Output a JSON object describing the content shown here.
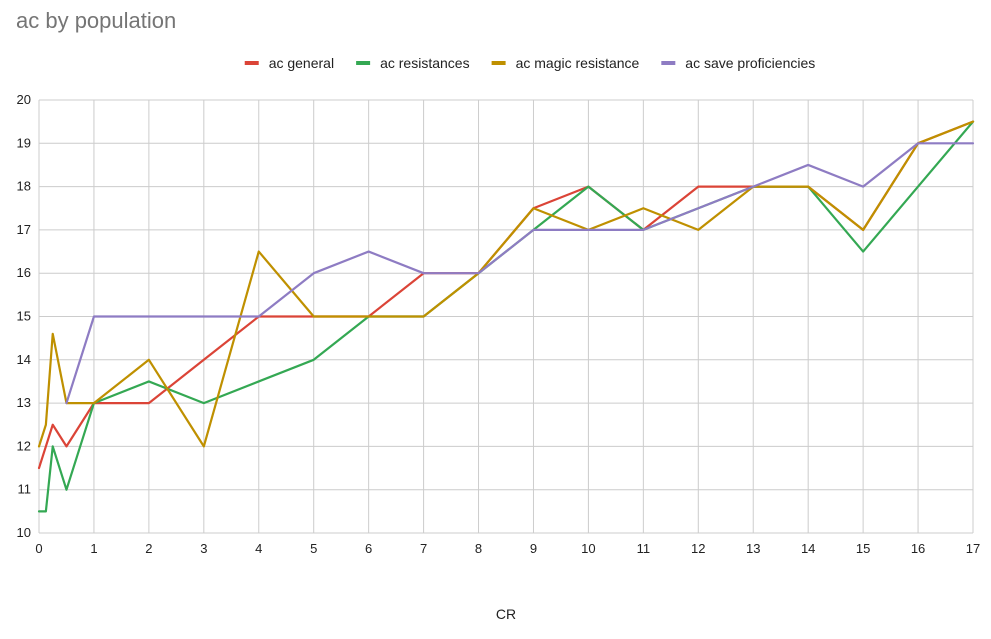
{
  "chart_data": {
    "type": "line",
    "title": "ac by population",
    "xlabel": "CR",
    "ylabel": "",
    "xlim": [
      0,
      17
    ],
    "ylim": [
      10,
      20
    ],
    "xticks": [
      0,
      1,
      2,
      3,
      4,
      5,
      6,
      7,
      8,
      9,
      10,
      11,
      12,
      13,
      14,
      15,
      16,
      17
    ],
    "yticks": [
      10,
      11,
      12,
      13,
      14,
      15,
      16,
      17,
      18,
      19,
      20
    ],
    "grid": true,
    "legend_position": "top-center",
    "x": [
      0,
      0.125,
      0.25,
      0.5,
      1,
      2,
      3,
      4,
      5,
      6,
      7,
      8,
      9,
      10,
      11,
      12,
      13,
      14,
      15,
      16,
      17
    ],
    "series": [
      {
        "name": "ac general",
        "color": "#db4437",
        "values": [
          11.5,
          12,
          12.5,
          12,
          13,
          13,
          14,
          15,
          15,
          15,
          16,
          16,
          17.5,
          18,
          17,
          18,
          18,
          18,
          17,
          19,
          19.5
        ]
      },
      {
        "name": "ac resistances",
        "color": "#34a853",
        "values": [
          10.5,
          10.5,
          12,
          11,
          13,
          13.5,
          13,
          13.5,
          14,
          15,
          15,
          16,
          17,
          18,
          17,
          17.5,
          18,
          18,
          16.5,
          18,
          19.5
        ]
      },
      {
        "name": "ac magic resistance",
        "color": "#bf9000",
        "values": [
          12,
          12.5,
          14.6,
          13,
          13,
          14,
          12,
          16.5,
          15,
          15,
          15,
          16,
          17.5,
          17,
          17.5,
          17,
          18,
          18,
          17,
          19,
          19.5
        ]
      },
      {
        "name": "ac save proficiencies",
        "color": "#8e7cc3",
        "values": [
          null,
          null,
          null,
          13,
          15,
          15,
          15,
          15,
          16,
          16.5,
          16,
          16,
          17,
          17,
          17,
          17.5,
          18,
          18.5,
          18,
          19,
          19
        ]
      }
    ]
  }
}
